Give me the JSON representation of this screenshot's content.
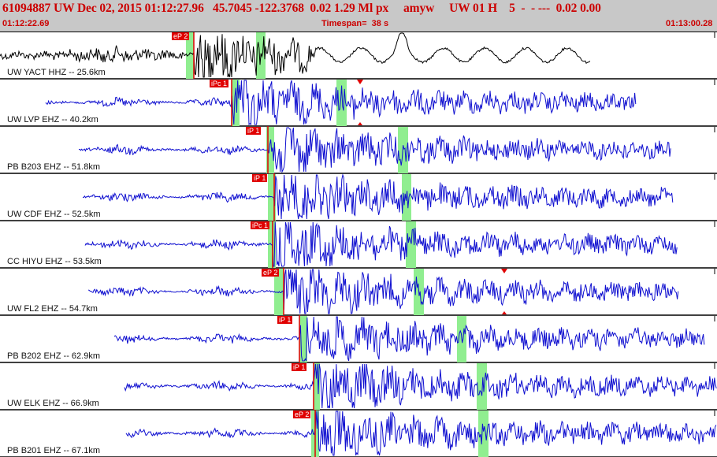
{
  "header": {
    "title": "61094887 UW Dec 02, 2015 01:12:27.96   45.7045 -122.3768  0.02 1.29 Ml px     amyw     UW 01 H    5  -  - ---  0.02 0.00",
    "start_time": "01:12:22.69",
    "timespan": "Timespan=  38 s",
    "end_time": "01:13:00.28"
  },
  "colors": {
    "header_bg": "#c8c8c8",
    "title": "#cc0000",
    "trace_first": "#000000",
    "trace": "#1010d0",
    "pick": "#e00000",
    "window": "#90ee90"
  },
  "traces": [
    {
      "label": "UW YACT HHZ -- 25.6km",
      "pick": "eP 2",
      "color": "black"
    },
    {
      "label": "UW LVP EHZ -- 40.2km",
      "pick": "iPc 1",
      "color": "blue",
      "marker": true
    },
    {
      "label": "PB B203 EHZ -- 51.8km",
      "pick": "iP 1",
      "color": "blue"
    },
    {
      "label": "UW CDF EHZ -- 52.5km",
      "pick": "iP 1",
      "color": "blue"
    },
    {
      "label": "CC HIYU EHZ -- 53.5km",
      "pick": "iPc 1",
      "color": "blue"
    },
    {
      "label": "UW FL2 EHZ -- 54.7km",
      "pick": "eP 2",
      "color": "blue",
      "marker": true
    },
    {
      "label": "PB B202 EHZ -- 62.9km",
      "pick": "iP 1",
      "color": "blue"
    },
    {
      "label": "UW ELK EHZ -- 66.9km",
      "pick": "iP 1",
      "color": "blue"
    },
    {
      "label": "PB B201 EHZ -- 67.1km",
      "pick": "eP 2",
      "color": "blue"
    }
  ]
}
